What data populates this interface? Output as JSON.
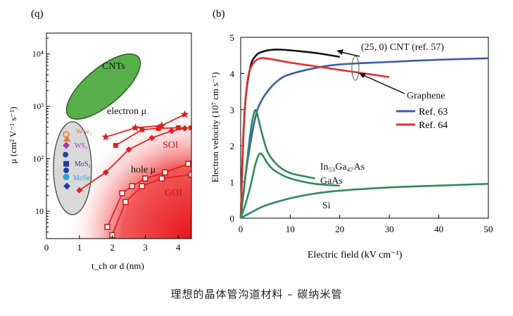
{
  "caption": "理想的晶体管沟道材料 – 碳纳米管",
  "panel_a": {
    "label": "(q)",
    "ylabel": "μ (cm² V⁻¹ s⁻¹)",
    "xlabel": "t_ch or d (nm)",
    "xticks": [
      "0",
      "1",
      "2",
      "3",
      "4"
    ],
    "yticks": [
      "10",
      "10²",
      "10³",
      "10⁴"
    ],
    "region_labels": {
      "cnt": "CNTs",
      "electron": "electron μ",
      "soi": "SOI",
      "hole": "hole μ",
      "goi": "GOI"
    },
    "tmd_labels": [
      "WSe₂",
      "WS₂",
      "MoS₂",
      "MoSe₂"
    ],
    "colors": {
      "cnt_fill": "#58b04a",
      "tmd_fill": "#d9d9d9",
      "gradient_red": "#e8141c",
      "line_red": "#e02020"
    }
  },
  "chart_data": [
    {
      "type": "line",
      "title": "",
      "xlabel": "t_ch or d (nm)",
      "ylabel": "μ (cm² V⁻¹ s⁻¹)",
      "xlim": [
        0,
        4.4
      ],
      "ylim": [
        3,
        25000
      ],
      "yscale": "log",
      "series": [
        {
          "name": "electron μ",
          "marker": "star",
          "x": [
            1.8,
            2.7,
            3.5,
            4.2
          ],
          "y": [
            260,
            390,
            430,
            700
          ]
        },
        {
          "name": "",
          "marker": "square",
          "x": [
            2.1,
            2.9,
            3.4,
            4.0,
            4.4
          ],
          "y": [
            180,
            360,
            380,
            390,
            390
          ]
        },
        {
          "name": "",
          "marker": "diamond",
          "x": [
            1.0,
            1.8,
            2.5,
            3.2,
            3.8,
            4.2
          ],
          "y": [
            25,
            55,
            150,
            250,
            340,
            380
          ]
        },
        {
          "name": "hole μ",
          "marker": "open-square",
          "x": [
            1.85,
            2.3,
            2.6,
            3.0,
            3.6,
            4.3
          ],
          "y": [
            5,
            22,
            30,
            42,
            55,
            80
          ]
        },
        {
          "name": "",
          "marker": "open-square",
          "x": [
            2.0,
            2.4,
            2.9,
            3.5,
            4.4
          ],
          "y": [
            3.5,
            15,
            30,
            42,
            50
          ]
        }
      ],
      "points": [
        {
          "label": "WSe₂",
          "x": 0.6,
          "y": 290,
          "color": "#e07b2a",
          "marker": "open-circle"
        },
        {
          "label": "WS₂",
          "x": 0.6,
          "y": 180,
          "color": "#a23ab0",
          "marker": "diamond"
        },
        {
          "label": "MoS₂",
          "x": 0.6,
          "y": 80,
          "color": "#1f3ea0",
          "marker": "square"
        },
        {
          "label": "MoSe₂",
          "x": 0.6,
          "y": 45,
          "color": "#2ea0dd",
          "marker": "circle"
        }
      ]
    },
    {
      "type": "line",
      "title": "",
      "xlabel": "Electric field (kV cm⁻¹)",
      "ylabel": "Electron velocity (10⁷ cm s⁻¹)",
      "xlim": [
        0,
        50
      ],
      "ylim": [
        0,
        5
      ],
      "xticks": [
        "0",
        "10",
        "20",
        "30",
        "40",
        "50"
      ],
      "yticks": [
        "0",
        "1",
        "2",
        "3",
        "4",
        "5"
      ],
      "annotations": [
        "(25, 0) CNT (ref. 57)",
        "Graphene",
        "In₅₃Ga₄₇As",
        "GaAs",
        "Si"
      ],
      "legend": {
        "placement": "right",
        "entries": [
          "Ref. 63",
          "Ref. 64"
        ]
      },
      "series": [
        {
          "name": "(25, 0) CNT (ref. 57)",
          "color": "#111111",
          "x": [
            0,
            0.5,
            1,
            2,
            3,
            4,
            6,
            8,
            10,
            13,
            16,
            20
          ],
          "y": [
            0,
            2.1,
            3.3,
            4.2,
            4.48,
            4.58,
            4.65,
            4.66,
            4.64,
            4.6,
            4.55,
            4.46
          ]
        },
        {
          "name": "Ref. 63",
          "color": "#3b5cae",
          "x": [
            0,
            1,
            2,
            3,
            4,
            6,
            8,
            10,
            15,
            20,
            30,
            40,
            50
          ],
          "y": [
            0,
            1.2,
            2.1,
            2.8,
            3.2,
            3.6,
            3.85,
            3.98,
            4.15,
            4.25,
            4.32,
            4.38,
            4.42
          ]
        },
        {
          "name": "Ref. 64",
          "color": "#e03030",
          "x": [
            0,
            0.5,
            1,
            1.5,
            2,
            3,
            4,
            5,
            8,
            10,
            15,
            20,
            25,
            30
          ],
          "y": [
            0,
            2.2,
            3.3,
            3.9,
            4.15,
            4.35,
            4.42,
            4.42,
            4.35,
            4.3,
            4.2,
            4.1,
            4.0,
            3.9
          ]
        },
        {
          "name": "In₅₃Ga₄₇As",
          "color": "#2e8b57",
          "x": [
            0,
            1,
            2,
            2.8,
            3.3,
            4,
            5,
            6,
            8,
            10,
            12,
            15
          ],
          "y": [
            0,
            1.2,
            2.4,
            2.95,
            2.9,
            2.5,
            2.0,
            1.7,
            1.4,
            1.25,
            1.18,
            1.1
          ]
        },
        {
          "name": "GaAs",
          "color": "#2e8b57",
          "x": [
            0,
            1,
            2,
            3,
            3.8,
            4.5,
            5.5,
            7,
            10,
            15,
            20
          ],
          "y": [
            0,
            0.4,
            0.9,
            1.5,
            1.78,
            1.72,
            1.5,
            1.3,
            1.1,
            0.95,
            0.9
          ]
        },
        {
          "name": "Si",
          "color": "#2e8b57",
          "x": [
            0,
            2,
            5,
            10,
            15,
            20,
            30,
            40,
            50
          ],
          "y": [
            0,
            0.15,
            0.35,
            0.55,
            0.68,
            0.76,
            0.85,
            0.9,
            0.95
          ]
        }
      ]
    }
  ]
}
